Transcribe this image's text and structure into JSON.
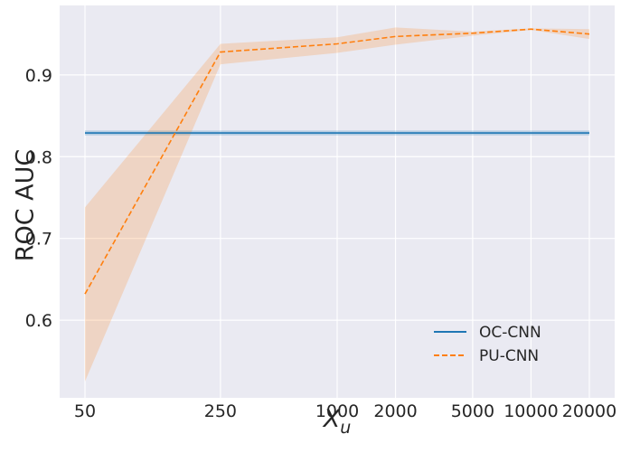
{
  "chart_data": {
    "type": "line",
    "x_categories": [
      "50",
      "250",
      "1000",
      "2000",
      "5000",
      "10000",
      "20000"
    ],
    "x_scale": "log",
    "x": [
      50,
      250,
      1000,
      2000,
      5000,
      10000,
      20000
    ],
    "xlabel_base": "X",
    "xlabel_sub": "u",
    "ylabel": "ROC AUC",
    "ylim": [
      0.505,
      0.985
    ],
    "yticks": [
      0.6,
      0.7,
      0.8,
      0.9
    ],
    "ytick_labels": [
      "0.6",
      "0.7",
      "0.8",
      "0.9"
    ],
    "grid": true,
    "legend_position": "lower-right",
    "background_color": "#eaeaf2",
    "series": [
      {
        "name": "OC-CNN",
        "style": "solid",
        "color": "#1f77b4",
        "values": [
          0.829,
          0.829,
          0.829,
          0.829,
          0.829,
          0.829,
          0.829
        ],
        "lower": [
          0.826,
          0.826,
          0.826,
          0.826,
          0.826,
          0.826,
          0.826
        ],
        "upper": [
          0.832,
          0.832,
          0.832,
          0.832,
          0.832,
          0.832,
          0.832
        ]
      },
      {
        "name": "PU-CNN",
        "style": "dashed",
        "color": "#ff7f0e",
        "values": [
          0.632,
          0.928,
          0.938,
          0.947,
          0.951,
          0.956,
          0.95
        ],
        "lower": [
          0.525,
          0.913,
          0.927,
          0.937,
          0.948,
          0.955,
          0.944
        ],
        "upper": [
          0.738,
          0.938,
          0.946,
          0.958,
          0.953,
          0.957,
          0.956
        ]
      }
    ]
  }
}
